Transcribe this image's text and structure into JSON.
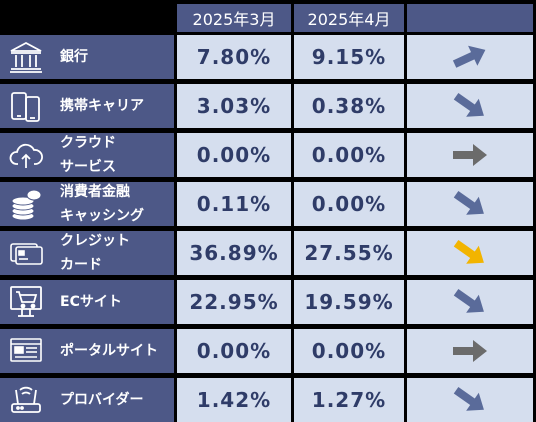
{
  "header": {
    "col_march": "2025年3月",
    "col_april": "2025年4月"
  },
  "colors": {
    "up": "#5a6b9a",
    "down": "#5a6b9a",
    "flat": "#6b6b6b",
    "highlight": "#f2b400"
  },
  "rows": [
    {
      "line1": "銀行",
      "line2": "",
      "march": "7.80%",
      "april": "9.15%",
      "icon": "bank-icon",
      "trend": "up"
    },
    {
      "line1": "携帯キャリア",
      "line2": "",
      "march": "3.03%",
      "april": "0.38%",
      "icon": "mobile-phone-icon",
      "trend": "down"
    },
    {
      "line1": "クラウド",
      "line2": "サービス",
      "march": "0.00%",
      "april": "0.00%",
      "icon": "cloud-upload-icon",
      "trend": "flat"
    },
    {
      "line1": "消費者金融",
      "line2": "キャッシング",
      "march": "0.11%",
      "april": "0.00%",
      "icon": "coins-icon",
      "trend": "down"
    },
    {
      "line1": "クレジット",
      "line2": "カード",
      "march": "36.89%",
      "april": "27.55%",
      "icon": "credit-card-icon",
      "trend": "down-highlight"
    },
    {
      "line1": "ECサイト",
      "line2": "",
      "march": "22.95%",
      "april": "19.59%",
      "icon": "shopping-cart-icon",
      "trend": "down"
    },
    {
      "line1": "ポータルサイト",
      "line2": "",
      "march": "0.00%",
      "april": "0.00%",
      "icon": "portal-site-icon",
      "trend": "flat"
    },
    {
      "line1": "プロバイダー",
      "line2": "",
      "march": "1.42%",
      "april": "1.27%",
      "icon": "router-icon",
      "trend": "down"
    }
  ]
}
